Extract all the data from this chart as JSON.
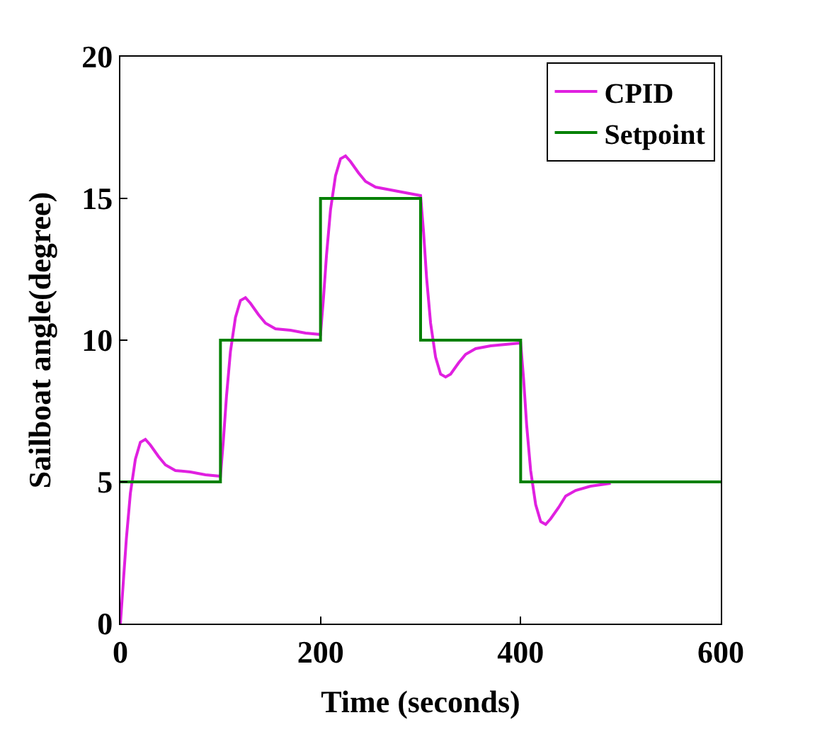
{
  "chart_data": {
    "type": "line",
    "xlabel": "Time (seconds)",
    "ylabel": "Sailboat angle(degree)",
    "xlim": [
      0,
      600
    ],
    "xticks": [
      0,
      200,
      400,
      600
    ],
    "ylim": [
      0,
      20
    ],
    "yticks": [
      0,
      5,
      10,
      15,
      20
    ],
    "legend": "top right",
    "marker": "none",
    "line_style": "solid",
    "series": [
      {
        "name": "CPID",
        "color": "#e020e0",
        "x": [
          0,
          3,
          6,
          10,
          15,
          20,
          25,
          30,
          38,
          45,
          55,
          70,
          85,
          100,
          103,
          106,
          110,
          115,
          120,
          125,
          130,
          138,
          145,
          155,
          170,
          185,
          200,
          203,
          206,
          210,
          215,
          220,
          225,
          230,
          238,
          245,
          255,
          270,
          285,
          300,
          303,
          306,
          310,
          315,
          320,
          325,
          330,
          338,
          345,
          355,
          370,
          385,
          400,
          403,
          406,
          410,
          415,
          420,
          425,
          430,
          438,
          445,
          455,
          470,
          490
        ],
        "values": [
          0,
          1.5,
          3,
          4.6,
          5.8,
          6.4,
          6.5,
          6.3,
          5.9,
          5.6,
          5.4,
          5.35,
          5.25,
          5.2,
          6.5,
          8,
          9.6,
          10.8,
          11.4,
          11.5,
          11.3,
          10.9,
          10.6,
          10.4,
          10.35,
          10.25,
          10.2,
          11.5,
          13,
          14.6,
          15.8,
          16.4,
          16.5,
          16.3,
          15.9,
          15.6,
          15.4,
          15.3,
          15.2,
          15.1,
          13.8,
          12.2,
          10.6,
          9.4,
          8.8,
          8.7,
          8.8,
          9.2,
          9.5,
          9.7,
          9.8,
          9.85,
          9.9,
          8.6,
          7,
          5.4,
          4.2,
          3.6,
          3.5,
          3.7,
          4.1,
          4.5,
          4.7,
          4.85,
          4.95
        ]
      },
      {
        "name": "Setpoint",
        "color": "#008000",
        "type": "step",
        "x": [
          0,
          100,
          200,
          300,
          400,
          600
        ],
        "values": [
          5,
          10,
          15,
          10,
          5,
          5
        ]
      }
    ]
  }
}
